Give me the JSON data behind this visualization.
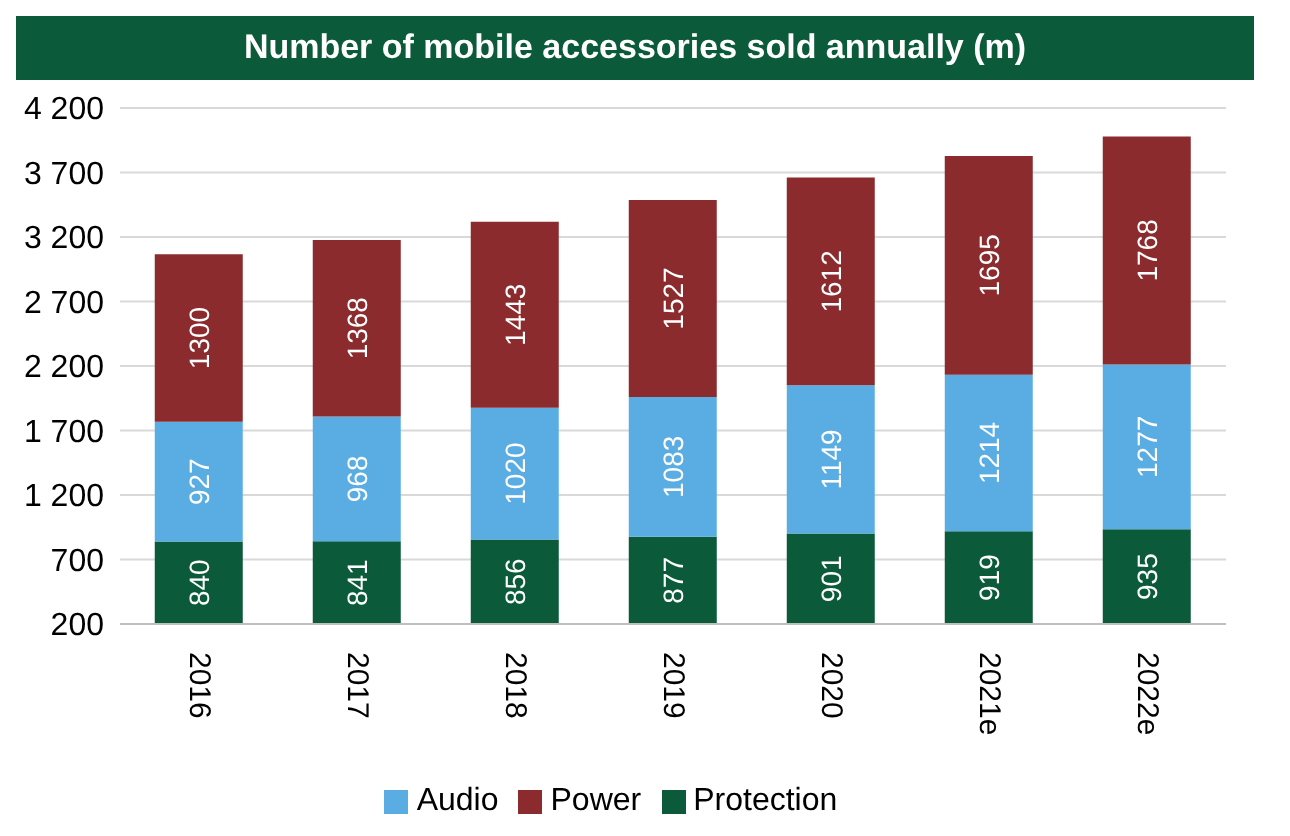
{
  "chart_data": {
    "type": "bar",
    "title": "Number of mobile accessories sold annually (m)",
    "categories": [
      "2016",
      "2017",
      "2018",
      "2019",
      "2020",
      "2021e",
      "2022e"
    ],
    "stacked": true,
    "data_labels": true,
    "grid": "y",
    "legend": "bottom",
    "ylim": [
      200,
      4200
    ],
    "yticks": [
      {
        "value": 200,
        "label": "200"
      },
      {
        "value": 700,
        "label": "700"
      },
      {
        "value": 1200,
        "label": "1 200"
      },
      {
        "value": 1700,
        "label": "1 700"
      },
      {
        "value": 2200,
        "label": "2 200"
      },
      {
        "value": 2700,
        "label": "2 700"
      },
      {
        "value": 3200,
        "label": "3 200"
      },
      {
        "value": 3700,
        "label": "3 700"
      },
      {
        "value": 4200,
        "label": "4 200"
      }
    ],
    "series": [
      {
        "name": "Protection",
        "color": "#0b5b3a",
        "values": [
          840,
          841,
          856,
          877,
          901,
          919,
          935
        ]
      },
      {
        "name": "Audio",
        "color": "#5aade3",
        "values": [
          927,
          968,
          1020,
          1083,
          1149,
          1214,
          1277
        ]
      },
      {
        "name": "Power",
        "color": "#8b2b2d",
        "values": [
          1300,
          1368,
          1443,
          1527,
          1612,
          1695,
          1768
        ]
      }
    ]
  }
}
